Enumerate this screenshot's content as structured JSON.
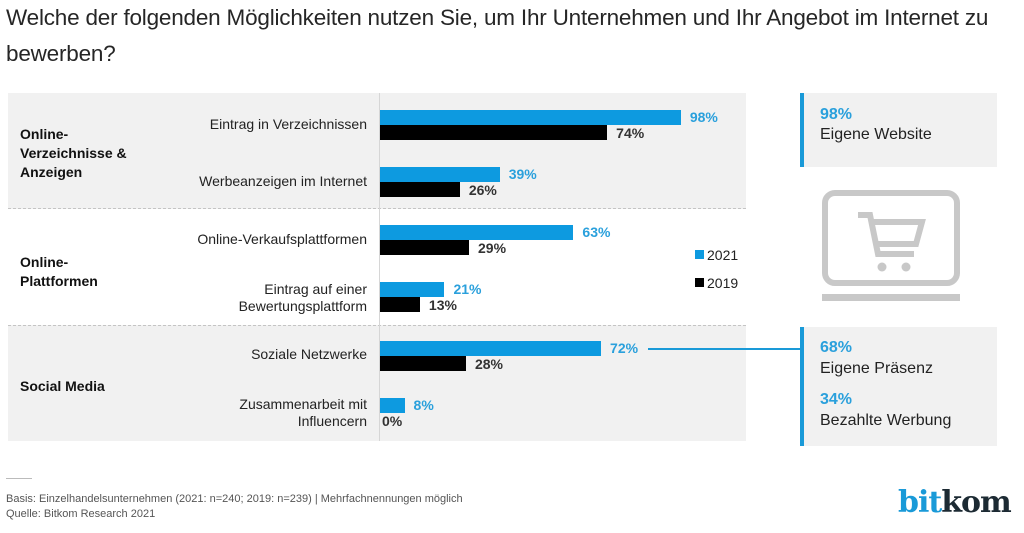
{
  "title": "Welche der folgenden Möglichkeiten nutzen Sie, um Ihr Unternehmen und Ihr Angebot im Internet zu bewerben?",
  "chart_data": {
    "type": "bar",
    "orientation": "horizontal",
    "title": "Welche der folgenden Möglichkeiten nutzen Sie, um Ihr Unternehmen und Ihr Angebot im Internet zu bewerben?",
    "xlabel": "",
    "ylabel": "",
    "xlim": [
      0,
      100
    ],
    "unit": "%",
    "grid": false,
    "legend_position": "right",
    "groups": [
      {
        "label": "Online-Verzeichnisse & Anzeigen",
        "categories": [
          0,
          1
        ]
      },
      {
        "label": "Online-Plattformen",
        "categories": [
          2,
          3
        ]
      },
      {
        "label": "Social Media",
        "categories": [
          4,
          5
        ]
      }
    ],
    "categories": [
      "Eintrag in Verzeichnissen",
      "Werbeanzeigen im Internet",
      "Online-Verkaufsplattformen",
      "Eintrag auf einer Bewertungsplattform",
      "Soziale Netzwerke",
      "Zusammenarbeit mit Influencern"
    ],
    "series": [
      {
        "name": "2021",
        "color": "#0d9ae0",
        "values": [
          98,
          39,
          63,
          21,
          72,
          8
        ]
      },
      {
        "name": "2019",
        "color": "#000000",
        "values": [
          74,
          26,
          29,
          13,
          28,
          0
        ]
      }
    ],
    "data_labels": {
      "2021": [
        "98%",
        "39%",
        "63%",
        "21%",
        "72%",
        "8%"
      ],
      "2019": [
        "74%",
        "26%",
        "29%",
        "13%",
        "28%",
        "0%"
      ]
    },
    "annotations": [
      {
        "value": "98%",
        "text": "Eigene Website"
      },
      {
        "value": "68%",
        "text": "Eigene Präsenz",
        "linked_category": "Soziale Netzwerke"
      },
      {
        "value": "34%",
        "text": "Bezahlte Werbung",
        "linked_category": "Soziale Netzwerke"
      }
    ]
  },
  "groups": {
    "g0": {
      "line1": "Online-",
      "line2": "Verzeichnisse &",
      "line3": "Anzeigen"
    },
    "g1": {
      "line1": "Online-",
      "line2": "Plattformen"
    },
    "g2": {
      "line1": "Social Media"
    }
  },
  "cat_labels": {
    "c0": {
      "line1": "Eintrag in Verzeichnissen"
    },
    "c1": {
      "line1": "Werbeanzeigen im Internet"
    },
    "c2": {
      "line1": "Online-Verkaufsplattformen"
    },
    "c3": {
      "line1": "Eintrag auf einer",
      "line2": "Bewertungsplattform"
    },
    "c4": {
      "line1": "Soziale Netzwerke"
    },
    "c5": {
      "line1": "Zusammenarbeit mit",
      "line2": "Influencern"
    }
  },
  "legend": {
    "y2021": "2021",
    "y2019": "2019"
  },
  "callouts": {
    "website": {
      "pct": "98%",
      "text": "Eigene Website"
    },
    "presence": {
      "pct": "68%",
      "text": "Eigene Präsenz"
    },
    "paid": {
      "pct": "34%",
      "text": "Bezahlte Werbung"
    }
  },
  "icons": {
    "cart": "laptop-shopping-cart-icon"
  },
  "footer": {
    "basis": "Basis: Einzelhandelsunternehmen (2021: n=240; 2019: n=239) | Mehrfachnennungen möglich",
    "source": "Quelle: Bitkom Research 2021"
  },
  "logo": {
    "part1": "bit",
    "part2": "kom"
  }
}
